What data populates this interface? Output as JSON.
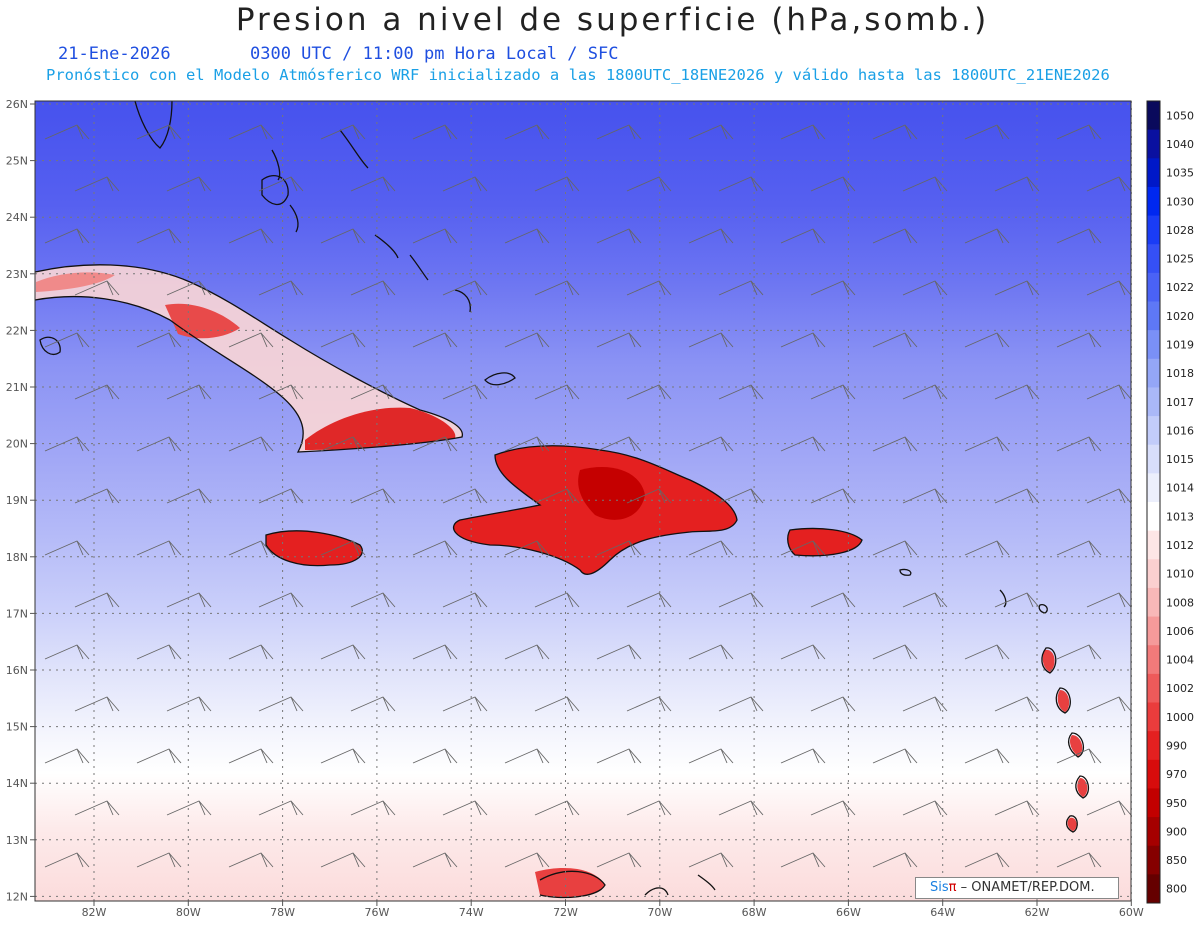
{
  "title": "Presion a nivel de superficie (hPa,somb.)",
  "date": "21-Ene-2026",
  "time_info": "0300 UTC / 11:00 pm Hora Local / SFC",
  "forecast_info": "Pronóstico con el Modelo Atmósferico WRF inicializado a las 1800UTC_18ENE2026 y válido hasta las  1800UTC_21ENE2026",
  "credit": {
    "sis": "Sis",
    "pi": "π",
    "rest": " – ONAMET/REP.DOM."
  },
  "lat_labels": [
    "26N",
    "25N",
    "24N",
    "23N",
    "22N",
    "21N",
    "20N",
    "19N",
    "18N",
    "17N",
    "16N",
    "15N",
    "14N",
    "13N",
    "12N"
  ],
  "lon_labels": [
    "82W",
    "80W",
    "78W",
    "76W",
    "74W",
    "72W",
    "70W",
    "68W",
    "66W",
    "64W",
    "62W",
    "60W"
  ],
  "colorbar": {
    "levels": [
      "1050",
      "1040",
      "1035",
      "1030",
      "1028",
      "1025",
      "1022",
      "1020",
      "1019",
      "1018",
      "1017",
      "1016",
      "1015",
      "1014",
      "1013",
      "1012",
      "1010",
      "1008",
      "1006",
      "1004",
      "1002",
      "1000",
      "990",
      "970",
      "950",
      "900",
      "850",
      "800"
    ],
    "colors": [
      "#0a0a5c",
      "#0a10a0",
      "#0018c8",
      "#0028f0",
      "#1a3cf5",
      "#3550f5",
      "#4a62f5",
      "#5e78f5",
      "#7a90f7",
      "#94a6f7",
      "#aab8f8",
      "#c2ccfa",
      "#d8defb",
      "#eceffc",
      "#ffffff",
      "#fde6e6",
      "#fbd0d0",
      "#f8b8b8",
      "#f59a9a",
      "#f27a7a",
      "#ee5a5a",
      "#ea3c3c",
      "#e42020",
      "#d80c0c",
      "#c20000",
      "#a50000",
      "#850000",
      "#650000"
    ]
  }
}
